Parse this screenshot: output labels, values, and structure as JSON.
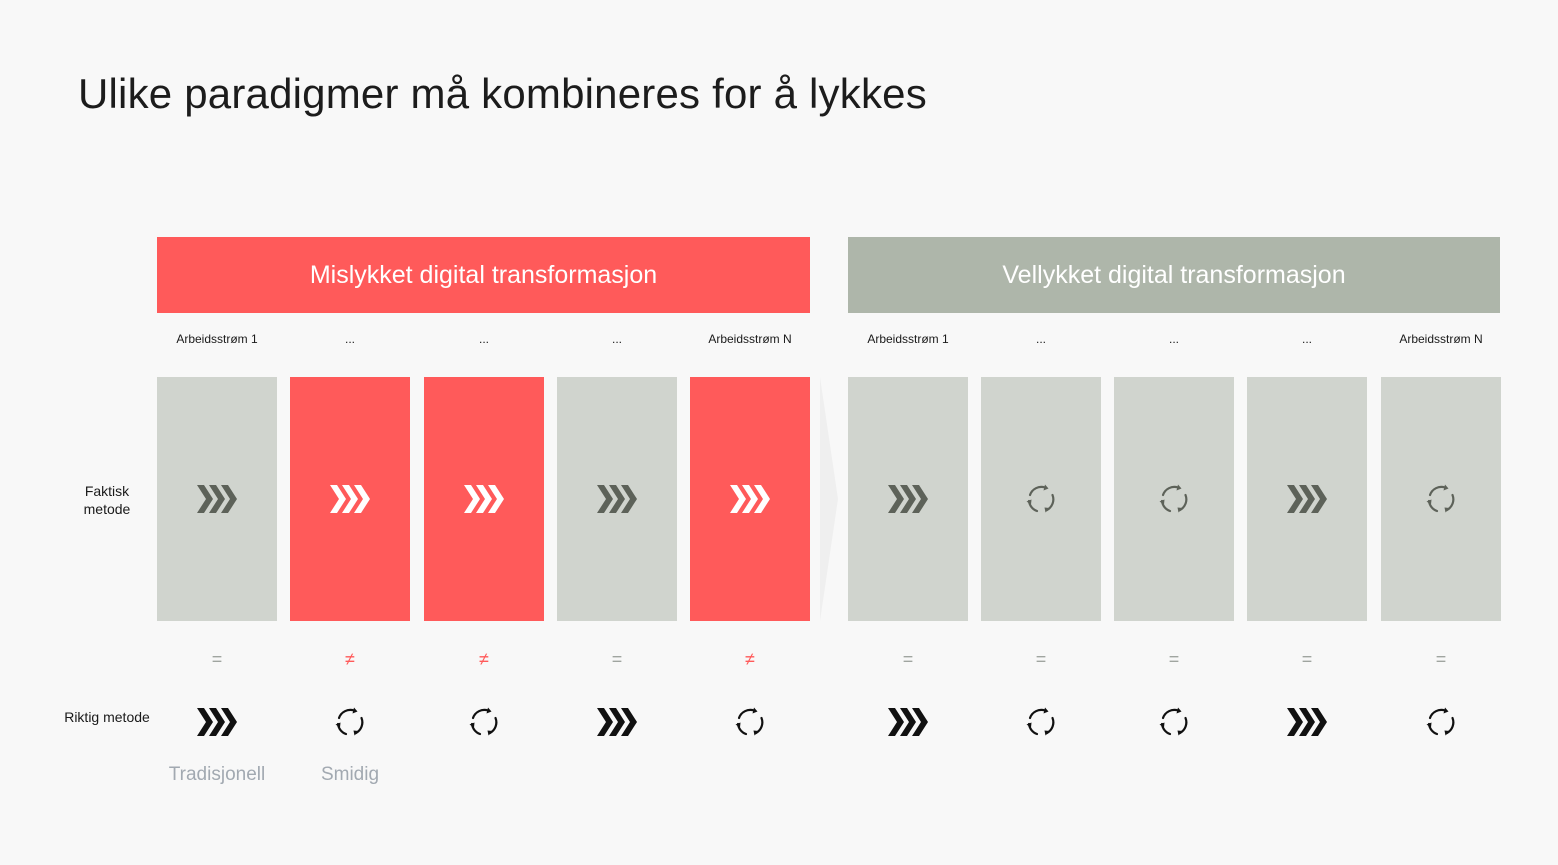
{
  "title": "Ulike paradigmer må kombineres for å lykkes",
  "banners": {
    "fail": "Mislykket digital transformasjon",
    "success": "Vellykket digital transformasjon"
  },
  "row_labels": {
    "actual": "Faktisk metode",
    "correct": "Riktig metode"
  },
  "legend": {
    "traditional": "Tradisjonell",
    "agile": "Smidig"
  },
  "symbols": {
    "equal": "=",
    "not_equal": "≠"
  },
  "colors": {
    "red": "#ff5a5a",
    "gray_block": "#d0d4ce",
    "banner_gray": "#aeb6aa",
    "icon_dark": "#5d6259",
    "icon_black": "#111111"
  },
  "columns": [
    {
      "label": "Arbeidsstrøm 1",
      "actual": "chevrons",
      "correct": "chevrons",
      "match": true
    },
    {
      "label": "...",
      "actual": "chevrons",
      "correct": "cycle",
      "match": false
    },
    {
      "label": "...",
      "actual": "chevrons",
      "correct": "cycle",
      "match": false
    },
    {
      "label": "...",
      "actual": "chevrons",
      "correct": "chevrons",
      "match": true
    },
    {
      "label": "Arbeidsstrøm N",
      "actual": "chevrons",
      "correct": "cycle",
      "match": false
    },
    {
      "label": "Arbeidsstrøm 1",
      "actual": "chevrons",
      "correct": "chevrons",
      "match": true
    },
    {
      "label": "...",
      "actual": "cycle",
      "correct": "cycle",
      "match": true
    },
    {
      "label": "...",
      "actual": "cycle",
      "correct": "cycle",
      "match": true
    },
    {
      "label": "...",
      "actual": "chevrons",
      "correct": "chevrons",
      "match": true
    },
    {
      "label": "Arbeidsstrøm N",
      "actual": "cycle",
      "correct": "cycle",
      "match": true
    }
  ]
}
